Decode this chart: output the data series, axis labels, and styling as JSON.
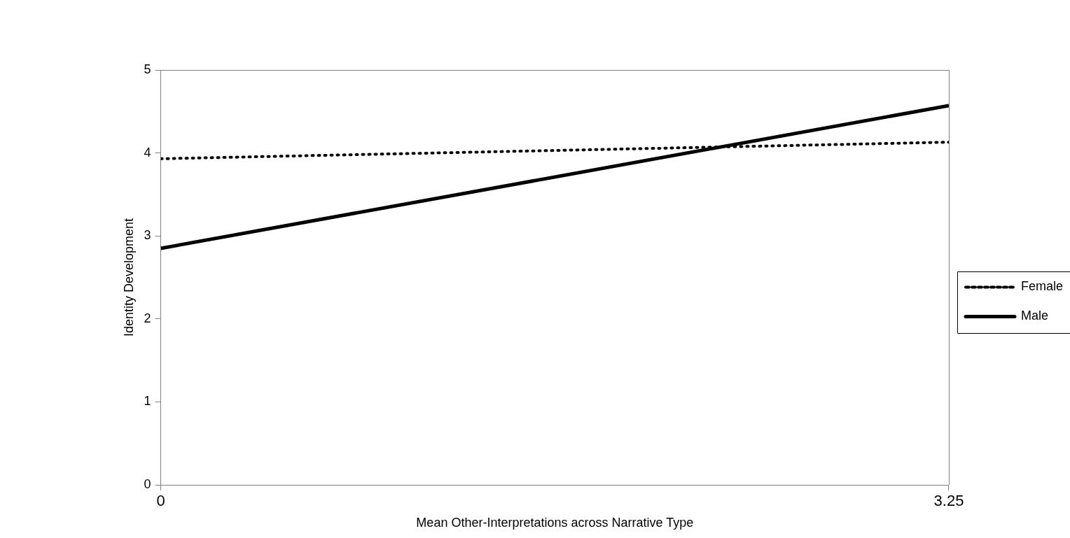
{
  "chart_data": {
    "type": "line",
    "xlabel": "Mean Other-Interpretations across Narrative Type",
    "ylabel": "Identity Development",
    "x": [
      0,
      3.25
    ],
    "series": [
      {
        "name": "Female",
        "color": "#000000",
        "values": [
          3.93,
          4.13
        ],
        "line_style": "dotted"
      },
      {
        "name": "Male",
        "color": "#000000",
        "values": [
          2.85,
          4.57
        ],
        "line_style": "solid"
      }
    ],
    "xlim": [
      0,
      3.25
    ],
    "xticks": [
      0,
      3.25
    ],
    "ylim": [
      0,
      5
    ],
    "yticks": [
      0,
      1,
      2,
      3,
      4,
      5
    ],
    "grid": false,
    "legend": "right",
    "marker": "none"
  }
}
